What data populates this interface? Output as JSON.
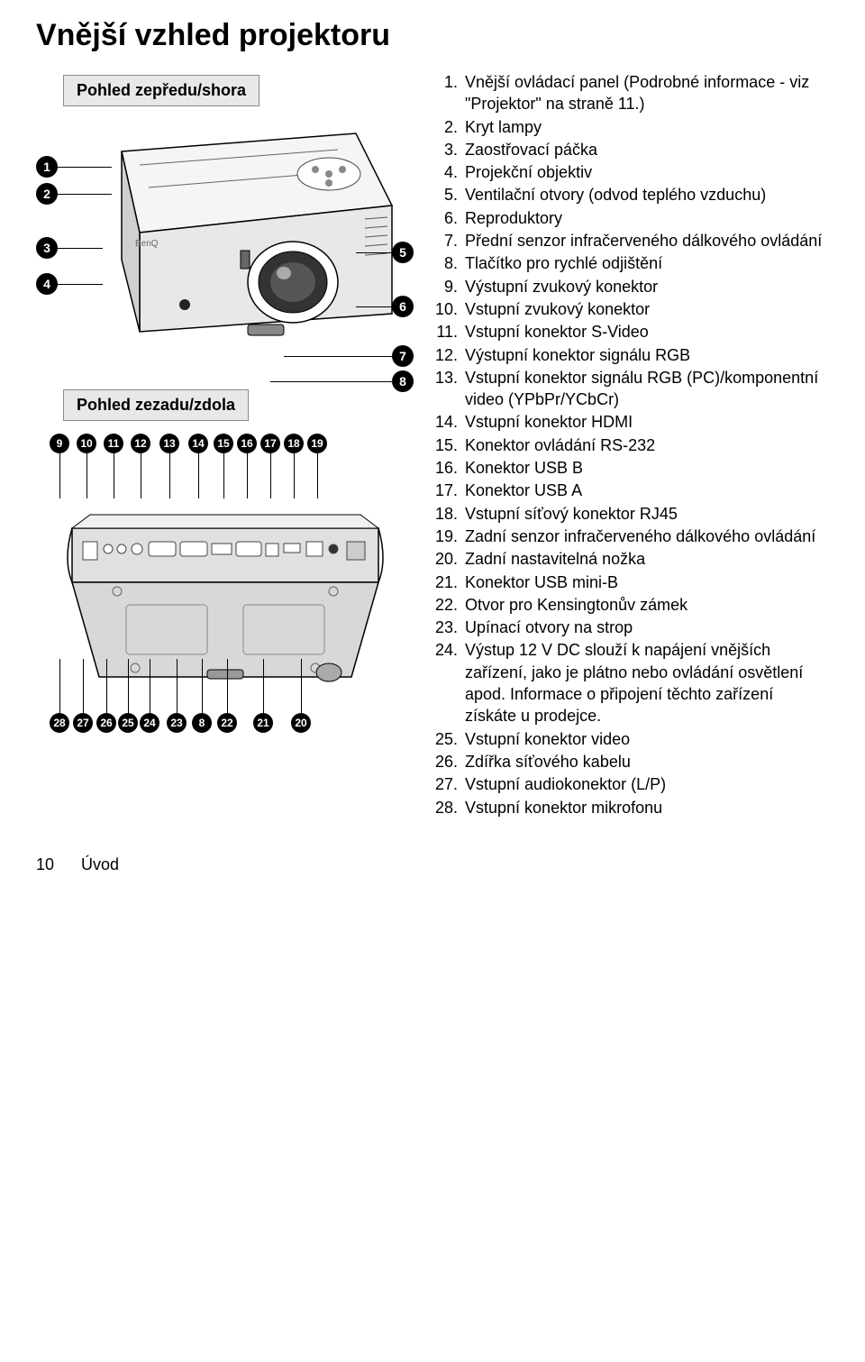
{
  "title": "Vnější vzhled projektoru",
  "front_view_label": "Pohled zepředu/shora",
  "rear_view_label": "Pohled zezadu/zdola",
  "front_callouts": [
    "1",
    "2",
    "3",
    "4",
    "5",
    "6",
    "7",
    "8"
  ],
  "rear_top_callouts": [
    "9",
    "10",
    "11",
    "12",
    "13",
    "14",
    "15",
    "16",
    "17",
    "18",
    "19"
  ],
  "rear_bottom_callouts": [
    "28",
    "27",
    "26",
    "25",
    "24",
    "23",
    "8",
    "22",
    "21",
    "20"
  ],
  "items": [
    {
      "n": "1.",
      "t": "Vnější ovládací panel (Podrobné informace - viz \"Projektor\" na straně 11.)"
    },
    {
      "n": "2.",
      "t": "Kryt lampy"
    },
    {
      "n": "3.",
      "t": "Zaostřovací páčka"
    },
    {
      "n": "4.",
      "t": "Projekční objektiv"
    },
    {
      "n": "5.",
      "t": "Ventilační otvory (odvod teplého vzduchu)"
    },
    {
      "n": "6.",
      "t": "Reproduktory"
    },
    {
      "n": "7.",
      "t": "Přední senzor infračerveného dálkového ovládání"
    },
    {
      "n": "8.",
      "t": "Tlačítko pro rychlé odjištění"
    },
    {
      "n": "9.",
      "t": "Výstupní zvukový konektor"
    },
    {
      "n": "10.",
      "t": "Vstupní zvukový konektor"
    },
    {
      "n": "11.",
      "t": "Vstupní konektor S-Video"
    },
    {
      "n": "12.",
      "t": "Výstupní konektor signálu RGB"
    },
    {
      "n": "13.",
      "t": "Vstupní konektor signálu RGB (PC)/komponentní video (YPbPr/YCbCr)"
    },
    {
      "n": "14.",
      "t": "Vstupní konektor HDMI"
    },
    {
      "n": "15.",
      "t": "Konektor ovládání RS-232"
    },
    {
      "n": "16.",
      "t": "Konektor USB B"
    },
    {
      "n": "17.",
      "t": "Konektor USB A"
    },
    {
      "n": "18.",
      "t": "Vstupní síťový konektor RJ45"
    },
    {
      "n": "19.",
      "t": "Zadní senzor infračerveného dálkového ovládání"
    },
    {
      "n": "20.",
      "t": "Zadní nastavitelná nožka"
    },
    {
      "n": "21.",
      "t": "Konektor USB mini-B"
    },
    {
      "n": "22.",
      "t": "Otvor pro Kensingtonův zámek"
    },
    {
      "n": "23.",
      "t": "Upínací otvory na strop"
    },
    {
      "n": "24.",
      "t": "Výstup 12 V DC slouží k napájení vnějších zařízení, jako je plátno nebo ovládání osvětlení apod. Informace o připojení těchto zařízení získáte u prodejce."
    },
    {
      "n": "25.",
      "t": "Vstupní konektor video"
    },
    {
      "n": "26.",
      "t": "Zdířka síťového kabelu"
    },
    {
      "n": "27.",
      "t": "Vstupní audiokonektor (L/P)"
    },
    {
      "n": "28.",
      "t": "Vstupní konektor mikrofonu"
    }
  ],
  "footer": {
    "page": "10",
    "section": "Úvod"
  }
}
